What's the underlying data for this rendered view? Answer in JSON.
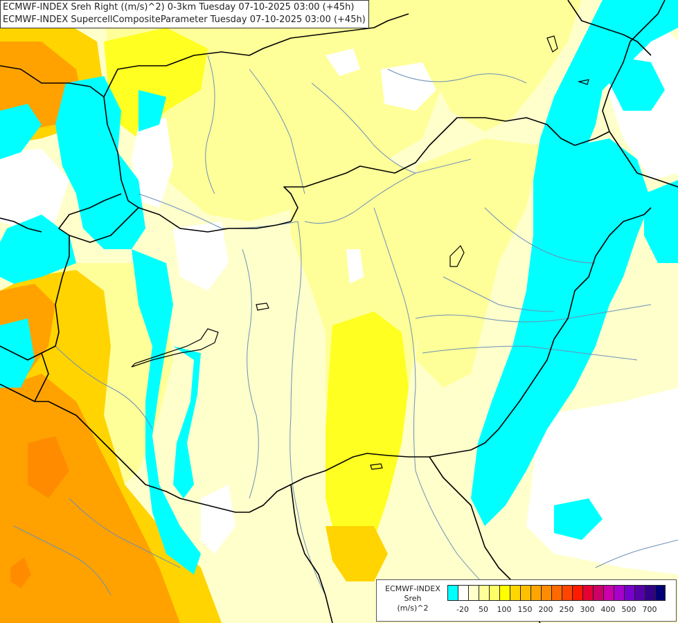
{
  "header": {
    "line1": "ECMWF-INDEX Sreh Right ((m/s)^2) 0-3km Tuesday 07-10-2025 03:00 (+45h)",
    "line2": "ECMWF-INDEX SupercellCompositeParameter Tuesday 07-10-2025 03:00 (+45h)"
  },
  "legend": {
    "title_line1": "ECMWF-INDEX",
    "title_line2": "Sreh",
    "title_line3": "(m/s)^2",
    "colors": [
      "#00ffff",
      "#ffffff",
      "#ffffcc",
      "#ffff99",
      "#ffff66",
      "#ffff00",
      "#ffd700",
      "#ffc000",
      "#ffa500",
      "#ff8c00",
      "#ff6a00",
      "#ff4500",
      "#ff1a00",
      "#e60033",
      "#cc0066",
      "#cc00aa",
      "#aa00cc",
      "#7700cc",
      "#5500aa",
      "#330088",
      "#000077"
    ],
    "ticks": [
      "-20",
      "50",
      "100",
      "150",
      "200",
      "250",
      "300",
      "400",
      "500",
      "700"
    ]
  },
  "colors": {
    "cyan": "#00ffff",
    "white": "#ffffff",
    "pale_yellow": "#ffffcc",
    "light_yellow": "#ffff99",
    "yellow": "#ffff00",
    "gold": "#ffd700",
    "orange": "#ffa500",
    "dark_orange": "#ff8c00",
    "border": "#000000",
    "river": "#6b8fb8"
  }
}
